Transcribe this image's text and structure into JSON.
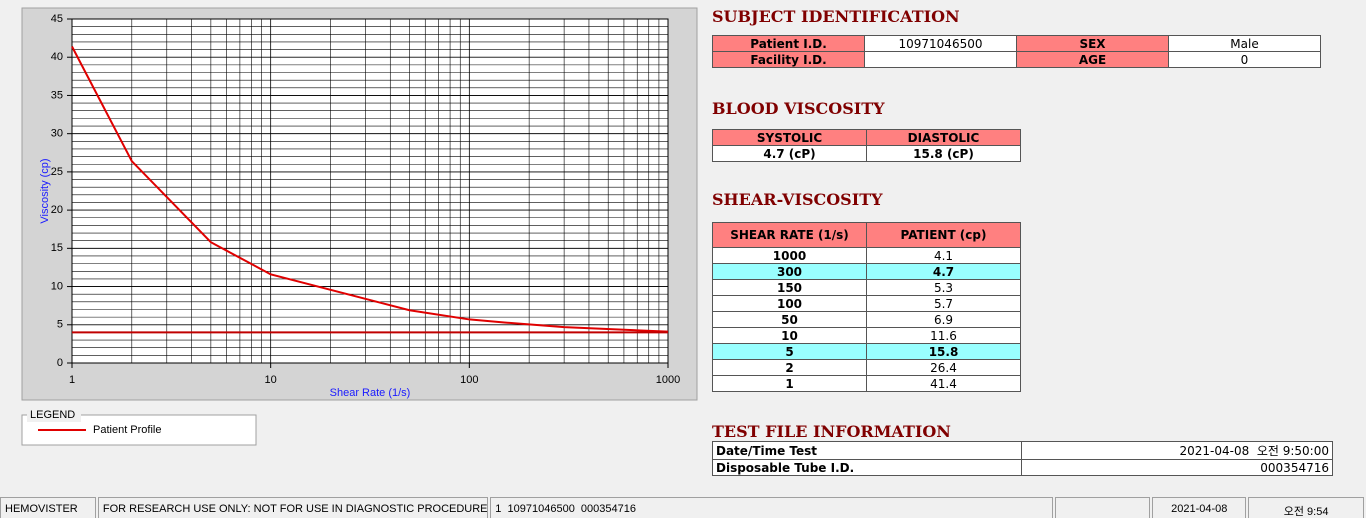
{
  "chart_data": {
    "type": "line",
    "x_label": "Shear Rate (1/s)",
    "y_label": "Viscosity (cp)",
    "x": [
      1,
      2,
      5,
      10,
      50,
      100,
      150,
      300,
      1000
    ],
    "series": [
      {
        "name": "Patient Profile",
        "color": "#e00000",
        "values": [
          41.4,
          26.4,
          15.8,
          11.6,
          6.9,
          5.7,
          5.3,
          4.7,
          4.1
        ]
      },
      {
        "color": "#c00000",
        "values": [
          4,
          4,
          4,
          4,
          4,
          4,
          4,
          4,
          4
        ]
      }
    ],
    "xlim": [
      1,
      1000
    ],
    "xticks": [
      1,
      10,
      100,
      1000
    ],
    "x_log": true,
    "ylim": [
      0,
      45
    ],
    "yticks": [
      0,
      5,
      10,
      15,
      20,
      25,
      30,
      35,
      40,
      45
    ],
    "grid": true,
    "minor_grid": true,
    "legend_title": "LEGEND"
  },
  "subject": {
    "title": "SUBJECT IDENTIFICATION",
    "rows": [
      [
        "Patient I.D.",
        "10971046500",
        "SEX",
        "Male"
      ],
      [
        "Facility I.D.",
        null,
        "AGE",
        "0"
      ]
    ]
  },
  "blood": {
    "title": "BLOOD VISCOSITY",
    "headers": [
      "SYSTOLIC",
      "DIASTOLIC"
    ],
    "values": [
      "4.7 (cP)",
      "15.8 (cP)"
    ]
  },
  "shear": {
    "title": "SHEAR-VISCOSITY",
    "headers": [
      "SHEAR RATE (1/s)",
      "PATIENT (cp)"
    ],
    "rows": [
      [
        "1000",
        "4.1"
      ],
      [
        "300",
        "4.7"
      ],
      [
        "150",
        "5.3"
      ],
      [
        "100",
        "5.7"
      ],
      [
        "50",
        "6.9"
      ],
      [
        "10",
        "11.6"
      ],
      [
        "5",
        "15.8"
      ],
      [
        "2",
        "26.4"
      ],
      [
        "1",
        "41.4"
      ]
    ],
    "highlight_rows": [
      1,
      6
    ],
    "highlight_color": "#99ffff"
  },
  "test_file": {
    "title": "TEST FILE INFORMATION",
    "rows": [
      [
        "Date/Time Test",
        "2021-04-08  오전 9:50:00"
      ],
      [
        "Disposable Tube I.D.",
        "000354716"
      ]
    ]
  },
  "status_bar": [
    "HEMOVISTER",
    "FOR RESEARCH USE ONLY: NOT FOR USE IN DIAGNOSTIC PROCEDURES",
    "1  10971046500  000354716",
    null,
    "2021-04-08",
    "오전 9:54"
  ]
}
